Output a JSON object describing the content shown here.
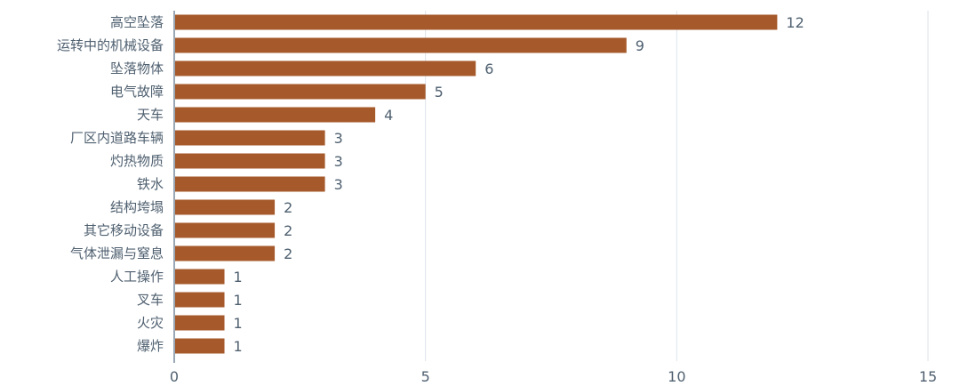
{
  "chart_data": {
    "type": "bar",
    "orientation": "horizontal",
    "categories": [
      "高空坠落",
      "运转中的机械设备",
      "坠落物体",
      "电气故障",
      "天车",
      "厂区内道路车辆",
      "灼热物质",
      "铁水",
      "结构垮塌",
      "其它移动设备",
      "气体泄漏与窒息",
      "人工操作",
      "叉车",
      "火灾",
      "爆炸"
    ],
    "values": [
      12,
      9,
      6,
      5,
      4,
      3,
      3,
      3,
      2,
      2,
      2,
      1,
      1,
      1,
      1
    ],
    "xlim": [
      0,
      15
    ],
    "xticks": [
      0,
      5,
      10,
      15
    ],
    "grid": "vertical",
    "data_labels": true,
    "bar_color": "#a65a2b",
    "grid_color": "#dde3ea",
    "axis_color": "#9aa7b5"
  }
}
